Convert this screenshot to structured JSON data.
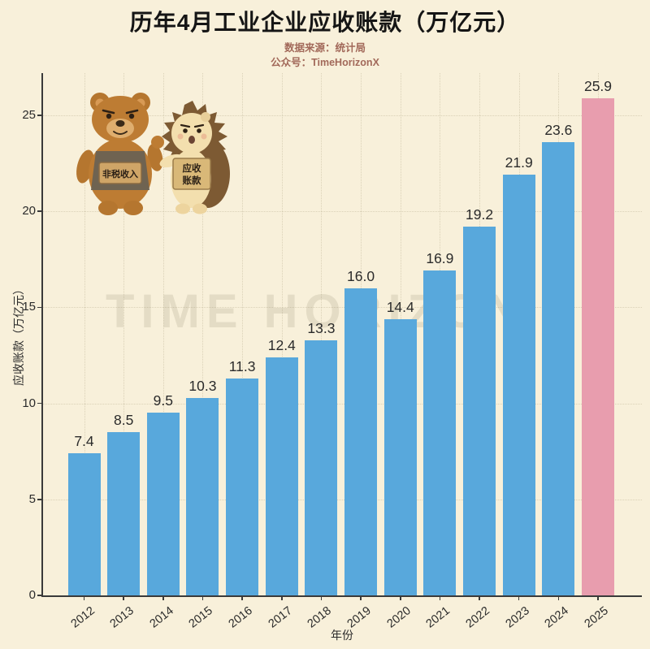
{
  "header": {
    "title": "历年4月工业企业应收账款（万亿元）",
    "subtitle_source": "数据来源：统计局",
    "subtitle_account": "公众号：TimeHorizonX"
  },
  "mascots": {
    "bear_sign": "非税收入",
    "hedgehog_sign_line1": "应收",
    "hedgehog_sign_line2": "账款"
  },
  "chart_data": {
    "type": "bar",
    "title": "历年4月工业企业应收账款（万亿元）",
    "categories": [
      "2012",
      "2013",
      "2014",
      "2015",
      "2016",
      "2017",
      "2018",
      "2019",
      "2020",
      "2021",
      "2022",
      "2023",
      "2024",
      "2025"
    ],
    "values": [
      7.4,
      8.5,
      9.5,
      10.3,
      11.3,
      12.4,
      13.3,
      16.0,
      14.4,
      16.9,
      19.2,
      21.9,
      23.6,
      25.9
    ],
    "xlabel": "年份",
    "ylabel": "应收账款（万亿元）",
    "ylim": [
      0,
      27.2
    ],
    "yticks": [
      0,
      5,
      10,
      15,
      20,
      25
    ],
    "grid": "dotted",
    "legend": "none",
    "watermark": "TIME HORIZON",
    "bar_color": "#58a8dc",
    "highlight_color": "#e89dae",
    "highlight_index": 13,
    "axis_color": "#3a3a3a",
    "label_color": "#2b2b2b",
    "background_color": "#f8f0da"
  }
}
